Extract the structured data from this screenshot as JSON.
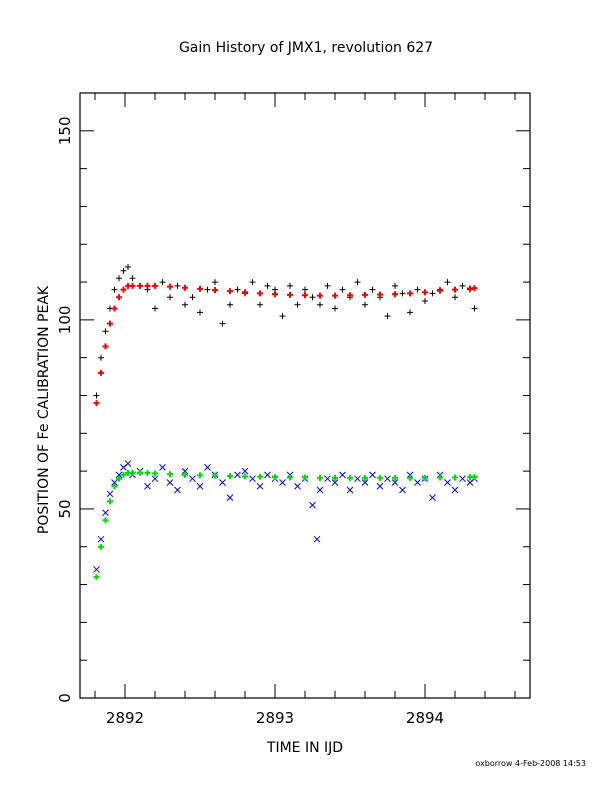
{
  "chart_data": {
    "type": "scatter",
    "title": "Gain History of JMX1, revolution 627",
    "xlabel": "TIME IN IJD",
    "ylabel": "POSITION OF Fe CALIBRATION PEAK",
    "xlim": [
      2891.7,
      2894.7
    ],
    "ylim": [
      0,
      160
    ],
    "xticks": [
      {
        "value": 2892,
        "label": "2892"
      },
      {
        "value": 2893,
        "label": "2893"
      },
      {
        "value": 2894,
        "label": "2894"
      }
    ],
    "yticks": [
      {
        "value": 0,
        "label": "0"
      },
      {
        "value": 50,
        "label": "50"
      },
      {
        "value": 100,
        "label": "100"
      },
      {
        "value": 150,
        "label": "150"
      }
    ],
    "footer": "oxborrow  4-Feb-2008 14:53",
    "series": [
      {
        "marker": "+",
        "color": "#000000",
        "x": [
          2891.81,
          2891.84,
          2891.87,
          2891.9,
          2891.93,
          2891.96,
          2891.99,
          2892.02,
          2892.05,
          2892.1,
          2892.15,
          2892.2,
          2892.25,
          2892.3,
          2892.35,
          2892.4,
          2892.45,
          2892.5,
          2892.55,
          2892.6,
          2892.65,
          2892.7,
          2892.75,
          2892.8,
          2892.85,
          2892.9,
          2892.95,
          2893.0,
          2893.05,
          2893.1,
          2893.15,
          2893.2,
          2893.25,
          2893.3,
          2893.35,
          2893.4,
          2893.45,
          2893.5,
          2893.55,
          2893.6,
          2893.65,
          2893.7,
          2893.75,
          2893.8,
          2893.85,
          2893.9,
          2893.95,
          2894.0,
          2894.05,
          2894.1,
          2894.15,
          2894.2,
          2894.25,
          2894.3,
          2894.33
        ],
        "y": [
          80,
          90,
          97,
          103,
          108,
          111,
          113,
          114,
          111,
          109,
          108,
          103,
          110,
          106,
          109,
          104,
          106,
          102,
          108,
          110,
          99,
          104,
          108,
          107,
          110,
          104,
          109,
          108,
          101,
          109,
          104,
          108,
          106,
          104,
          109,
          103,
          108,
          106,
          110,
          104,
          108,
          106,
          101,
          109,
          107,
          102,
          108,
          105,
          107,
          108,
          110,
          106,
          109,
          108,
          103
        ]
      },
      {
        "marker": "x",
        "color": "#0000ff",
        "x": [
          2891.81,
          2891.84,
          2891.87,
          2891.9,
          2891.93,
          2891.96,
          2891.99,
          2892.02,
          2892.05,
          2892.1,
          2892.15,
          2892.2,
          2892.25,
          2892.3,
          2892.35,
          2892.4,
          2892.45,
          2892.5,
          2892.55,
          2892.6,
          2892.65,
          2892.7,
          2892.75,
          2892.8,
          2892.85,
          2892.9,
          2892.95,
          2893.0,
          2893.05,
          2893.1,
          2893.15,
          2893.2,
          2893.25,
          2893.28,
          2893.3,
          2893.35,
          2893.4,
          2893.45,
          2893.5,
          2893.55,
          2893.6,
          2893.65,
          2893.7,
          2893.75,
          2893.8,
          2893.85,
          2893.9,
          2893.95,
          2894.0,
          2894.05,
          2894.1,
          2894.15,
          2894.2,
          2894.25,
          2894.3,
          2894.33
        ],
        "y": [
          34,
          42,
          49,
          54,
          57,
          59,
          61,
          62,
          59,
          60,
          56,
          58,
          61,
          57,
          55,
          60,
          58,
          56,
          61,
          59,
          57,
          53,
          59,
          60,
          58,
          56,
          59,
          58,
          57,
          59,
          56,
          58,
          51,
          42,
          55,
          58,
          57,
          59,
          55,
          58,
          57,
          59,
          56,
          58,
          57,
          55,
          59,
          57,
          58,
          53,
          59,
          57,
          55,
          58,
          57,
          58
        ]
      },
      {
        "marker": "+",
        "color": "#ff0000",
        "x": [
          2891.81,
          2891.84,
          2891.87,
          2891.9,
          2891.93,
          2891.96,
          2891.99,
          2892.02,
          2892.05,
          2892.1,
          2892.15,
          2892.2,
          2892.3,
          2892.4,
          2892.5,
          2892.6,
          2892.7,
          2892.8,
          2892.9,
          2893.0,
          2893.1,
          2893.2,
          2893.3,
          2893.4,
          2893.5,
          2893.6,
          2893.7,
          2893.8,
          2893.9,
          2894.0,
          2894.1,
          2894.2,
          2894.3,
          2894.33
        ],
        "y": [
          78,
          86,
          93,
          99,
          103,
          106,
          108,
          109,
          109,
          109,
          109,
          109,
          108.8,
          108.5,
          108.2,
          107.9,
          107.6,
          107.3,
          107.0,
          106.8,
          106.6,
          106.5,
          106.4,
          106.4,
          106.5,
          106.6,
          106.7,
          106.8,
          107.0,
          107.3,
          107.7,
          108.0,
          108.3,
          108.4
        ]
      },
      {
        "marker": "+",
        "color": "#00e000",
        "x": [
          2891.81,
          2891.84,
          2891.87,
          2891.9,
          2891.93,
          2891.96,
          2891.99,
          2892.02,
          2892.05,
          2892.1,
          2892.15,
          2892.2,
          2892.3,
          2892.4,
          2892.5,
          2892.6,
          2892.7,
          2892.8,
          2892.9,
          2893.0,
          2893.1,
          2893.2,
          2893.3,
          2893.4,
          2893.5,
          2893.6,
          2893.7,
          2893.8,
          2893.9,
          2894.0,
          2894.1,
          2894.2,
          2894.3,
          2894.33
        ],
        "y": [
          32,
          40,
          47,
          52,
          56,
          58,
          59,
          59.5,
          59.6,
          59.6,
          59.5,
          59.4,
          59.2,
          59.0,
          58.9,
          58.8,
          58.7,
          58.6,
          58.5,
          58.4,
          58.3,
          58.3,
          58.2,
          58.2,
          58.2,
          58.2,
          58.2,
          58.2,
          58.2,
          58.2,
          58.3,
          58.3,
          58.4,
          58.4
        ]
      }
    ]
  }
}
